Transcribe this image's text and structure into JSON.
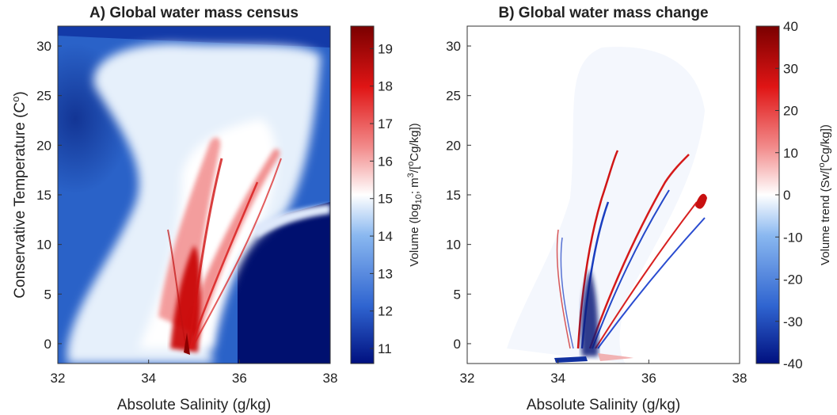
{
  "chart_data": [
    {
      "type": "heatmap",
      "title": "A) Global water mass census",
      "xlabel": "Absolute Salinity (g/kg)",
      "ylabel": "Conservative Temperature (C",
      "ylabel_sup": "o",
      "ylabel_end": ")",
      "xlim": [
        32,
        38
      ],
      "ylim": [
        -2,
        32
      ],
      "xticks": [
        "32",
        "34",
        "36",
        "38"
      ],
      "yticks": [
        "0",
        "5",
        "10",
        "15",
        "20",
        "25",
        "30"
      ],
      "grid": false,
      "colorbar": {
        "label": "Volume (log",
        "label_sub": "10",
        "label_mid": "; m",
        "label_sup": "3",
        "label_mid2": "/[",
        "label_sup2": "o",
        "label_end": "Cg/kg])",
        "range": [
          10.6,
          19.6
        ],
        "ticks": [
          "11",
          "12",
          "13",
          "14",
          "15",
          "16",
          "17",
          "18",
          "19"
        ],
        "colors": [
          "#00107f",
          "#2f64d0",
          "#8ab8f0",
          "#ffffff",
          "#f28c8c",
          "#e01515",
          "#7a0000"
        ]
      }
    },
    {
      "type": "heatmap",
      "title": "B) Global water mass change",
      "xlabel": "Absolute Salinity (g/kg)",
      "ylabel": "",
      "xlim": [
        32,
        38
      ],
      "ylim": [
        -2,
        32
      ],
      "xticks": [
        "32",
        "34",
        "36",
        "38"
      ],
      "yticks": [
        "0",
        "5",
        "10",
        "15",
        "20",
        "25",
        "30"
      ],
      "grid": false,
      "colorbar": {
        "label": "Volume trend (Sv/[",
        "label_sup": "o",
        "label_end": "Cg/kg])",
        "range": [
          -40,
          40
        ],
        "ticks": [
          "-40",
          "-30",
          "-20",
          "-10",
          "0",
          "10",
          "20",
          "30",
          "40"
        ],
        "colors": [
          "#00107f",
          "#2f64d0",
          "#8ab8f0",
          "#ffffff",
          "#f28c8c",
          "#e01515",
          "#7a0000"
        ]
      }
    }
  ]
}
